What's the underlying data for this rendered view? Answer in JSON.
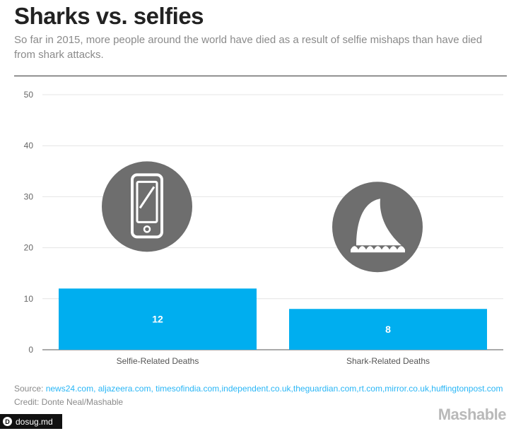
{
  "header": {
    "title": "Sharks vs. selfies",
    "subtitle": "So far in 2015, more people around the world have died as a result of selfie mishaps than have died from shark attacks."
  },
  "chart_data": {
    "type": "bar",
    "categories": [
      "Selfie-Related Deaths",
      "Shark-Related Deaths"
    ],
    "values": [
      12,
      8
    ],
    "data_labels": [
      "12",
      "8"
    ],
    "yticks": [
      "0",
      "10",
      "20",
      "30",
      "40",
      "50"
    ],
    "ylim": [
      0,
      50
    ],
    "grid": true,
    "bar_color": "#00aeef",
    "icons": [
      "smartphone-icon",
      "shark-fin-icon"
    ],
    "icon_color": "#6e6e6e"
  },
  "footer": {
    "source_prefix": "Source: ",
    "source_links": "news24.com, aljazeera.com, timesofindia.com,independent.co.uk,theguardian.com,rt.com,mirror.co.uk,huffingtonpost.com",
    "credit": "Credit: Donte Neal/Mashable",
    "brand": "Mashable"
  },
  "watermark": {
    "icon_letter": "D",
    "text": "dosug.md"
  }
}
